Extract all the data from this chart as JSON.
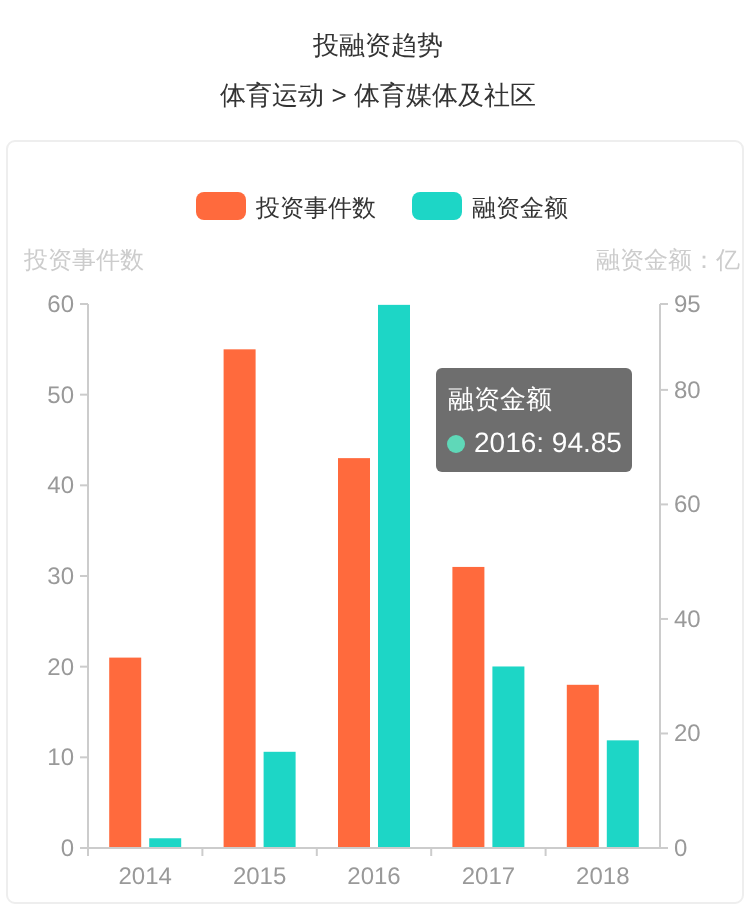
{
  "chart_data": {
    "type": "bar",
    "title": "投融资趋势",
    "subtitle": "体育运动 > 体育媒体及社区",
    "ylabel": "投资事件数",
    "y2label": "融资金额：亿",
    "categories": [
      "2014",
      "2015",
      "2016",
      "2017",
      "2018"
    ],
    "series": [
      {
        "name": "投资事件数",
        "color": "#ff6a3d",
        "values": [
          21,
          55,
          43,
          31,
          18
        ]
      },
      {
        "name": "融资金额",
        "color": "#1dd6c6",
        "axis": "y2",
        "values": [
          1.7,
          16.8,
          94.85,
          31.7,
          18.8
        ]
      }
    ],
    "ylim": [
      0,
      60
    ],
    "yticks": [
      0,
      10,
      20,
      30,
      40,
      50,
      60
    ],
    "y2lim": [
      0,
      95
    ],
    "y2ticks": [
      0,
      20,
      40,
      60,
      80,
      95
    ],
    "legend": "top",
    "grid": false,
    "annotations": [
      "融资金额",
      "2016: 94.85"
    ]
  }
}
